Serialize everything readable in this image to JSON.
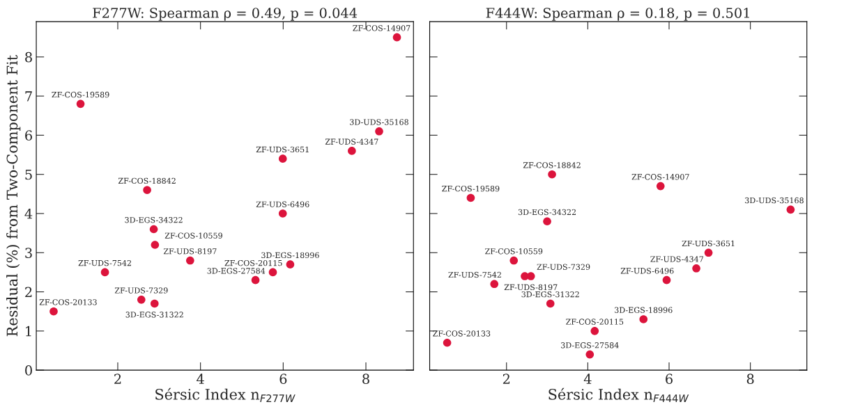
{
  "chart_data": [
    {
      "type": "scatter",
      "title": "F277W: Spearman ρ = 0.49, p = 0.044",
      "xlabel": "Sérsic Index n$_{F277W}$",
      "ylabel": "Residual (%) from Two-Component Fit",
      "xlim": [
        0.03,
        9.15
      ],
      "ylim": [
        0,
        8.9
      ],
      "xticks": [
        2,
        4,
        6,
        8
      ],
      "yticks": [
        0,
        1,
        2,
        3,
        4,
        5,
        6,
        7,
        8
      ],
      "marker": "circle",
      "grid": false,
      "series": [
        {
          "color": "#dc143c",
          "x": [
            8.75,
            1.1,
            8.32,
            7.66,
            5.99,
            2.71,
            5.99,
            2.87,
            2.9,
            3.75,
            6.17,
            5.75,
            5.33,
            1.69,
            2.57,
            2.89,
            0.45
          ],
          "values": [
            8.5,
            6.8,
            6.1,
            5.6,
            5.4,
            4.6,
            4.0,
            3.6,
            3.2,
            2.8,
            2.7,
            2.5,
            2.3,
            2.5,
            1.8,
            1.7,
            1.5
          ]
        }
      ],
      "annotations": [
        {
          "text": "ZF-COS-14907",
          "x": 8.75,
          "y": 8.5
        },
        {
          "text": "ZF-COS-19589",
          "x": 1.1,
          "y": 6.8
        },
        {
          "text": "3D-UDS-35168",
          "x": 8.32,
          "y": 6.1
        },
        {
          "text": "ZF-UDS-4347",
          "x": 7.66,
          "y": 5.6
        },
        {
          "text": "ZF-UDS-3651",
          "x": 5.99,
          "y": 5.4
        },
        {
          "text": "ZF-COS-18842",
          "x": 2.71,
          "y": 4.6
        },
        {
          "text": "ZF-UDS-6496",
          "x": 5.99,
          "y": 4.0
        },
        {
          "text": "3D-EGS-34322",
          "x": 2.87,
          "y": 3.6
        },
        {
          "text": "ZF-COS-10559",
          "x": 2.9,
          "y": 3.2
        },
        {
          "text": "ZF-UDS-8197",
          "x": 3.75,
          "y": 2.8
        },
        {
          "text": "3D-EGS-18996",
          "x": 6.17,
          "y": 2.7
        },
        {
          "text": "ZF-COS-20115",
          "x": 5.75,
          "y": 2.5
        },
        {
          "text": "3D-EGS-27584",
          "x": 5.33,
          "y": 2.3
        },
        {
          "text": "ZF-UDS-7542",
          "x": 1.69,
          "y": 2.5
        },
        {
          "text": "ZF-UDS-7329",
          "x": 2.57,
          "y": 1.8
        },
        {
          "text": "3D-EGS-31322",
          "x": 2.89,
          "y": 1.7
        },
        {
          "text": "ZF-COS-20133",
          "x": 0.45,
          "y": 1.5
        }
      ]
    },
    {
      "type": "scatter",
      "title": "F444W: Spearman ρ = 0.18, p = 0.501",
      "xlabel": "Sérsic Index n$_{F444W}$",
      "xlim": [
        0.11,
        9.39
      ],
      "ylim": [
        0,
        8.9
      ],
      "xticks": [
        2,
        4,
        6,
        8
      ],
      "yticks": [
        0,
        1,
        2,
        3,
        4,
        5,
        6,
        7,
        8
      ],
      "tick_labels": "x",
      "marker": "circle",
      "grid": false,
      "series": [
        {
          "color": "#dc143c",
          "x": [
            3.12,
            1.12,
            5.79,
            8.99,
            3.0,
            6.97,
            2.18,
            6.67,
            2.45,
            2.6,
            5.94,
            1.7,
            3.08,
            5.37,
            4.17,
            0.54,
            4.05
          ],
          "values": [
            5.0,
            4.4,
            4.7,
            4.1,
            3.8,
            3.0,
            2.8,
            2.6,
            2.4,
            2.4,
            2.3,
            2.2,
            1.7,
            1.3,
            1.0,
            0.7,
            0.4
          ]
        }
      ],
      "annotations": [
        {
          "text": "ZF-COS-18842",
          "x": 3.12,
          "y": 5.0
        },
        {
          "text": "ZF-COS-19589",
          "x": 1.12,
          "y": 4.4
        },
        {
          "text": "ZF-COS-14907",
          "x": 5.79,
          "y": 4.7
        },
        {
          "text": "3D-UDS-35168",
          "x": 8.99,
          "y": 4.1
        },
        {
          "text": "3D-EGS-34322",
          "x": 3.0,
          "y": 3.8
        },
        {
          "text": "ZF-UDS-3651",
          "x": 6.97,
          "y": 3.0
        },
        {
          "text": "ZF-COS-10559",
          "x": 2.18,
          "y": 2.8
        },
        {
          "text": "ZF-UDS-4347",
          "x": 6.67,
          "y": 2.6
        },
        {
          "text": "ZF-UDS-7329",
          "x": 2.45,
          "y": 2.4
        },
        {
          "text": "ZF-UDS-8197",
          "x": 2.6,
          "y": 2.4
        },
        {
          "text": "ZF-UDS-6496",
          "x": 5.94,
          "y": 2.3
        },
        {
          "text": "ZF-UDS-7542",
          "x": 1.7,
          "y": 2.2
        },
        {
          "text": "3D-EGS-31322",
          "x": 3.08,
          "y": 1.7
        },
        {
          "text": "3D-EGS-18996",
          "x": 5.37,
          "y": 1.3
        },
        {
          "text": "ZF-COS-20115",
          "x": 4.17,
          "y": 1.0
        },
        {
          "text": "ZF-COS-20133",
          "x": 0.54,
          "y": 0.7
        },
        {
          "text": "3D-EGS-27584",
          "x": 4.05,
          "y": 0.4
        }
      ]
    }
  ]
}
